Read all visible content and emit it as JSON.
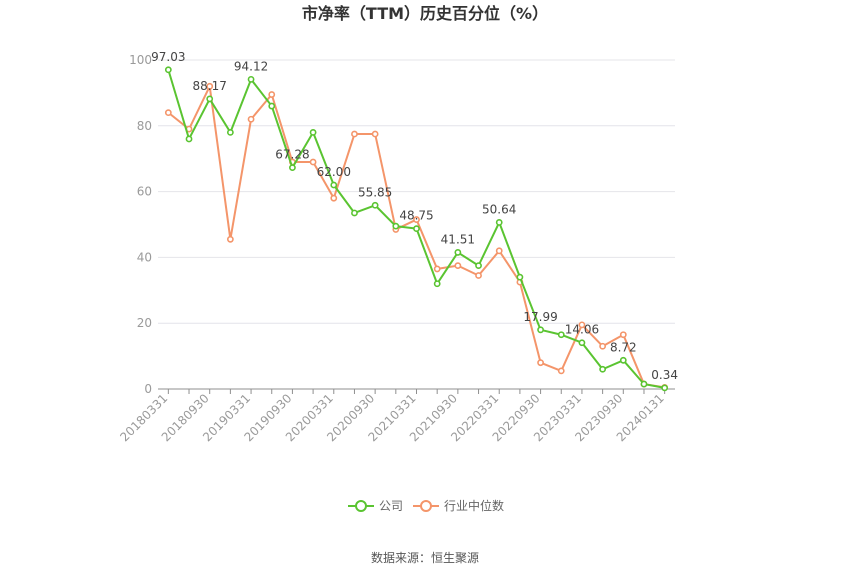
{
  "chart_data": {
    "type": "line",
    "title": "市净率（TTM）历史百分位（%）",
    "x": [
      "20180331",
      "20180630",
      "20180930",
      "20181231",
      "20190331",
      "20190630",
      "20190930",
      "20191231",
      "20200331",
      "20200630",
      "20200930",
      "20201231",
      "20210331",
      "20210630",
      "20210930",
      "20211231",
      "20220331",
      "20220630",
      "20220930",
      "20221231",
      "20230331",
      "20230630",
      "20230930",
      "20231231",
      "20240131"
    ],
    "x_tick_labels": [
      "20180331",
      "20180930",
      "20190331",
      "20190930",
      "20200331",
      "20200930",
      "20210331",
      "20210930",
      "20220331",
      "20220930",
      "20230331",
      "20230930",
      "20240131"
    ],
    "ylim": [
      0,
      100
    ],
    "y_ticks": [
      0,
      20,
      40,
      60,
      80,
      100
    ],
    "grid": true,
    "legend_position": "bottom",
    "series": [
      {
        "name": "公司",
        "color": "#5ac431",
        "values": [
          97.03,
          76.0,
          88.17,
          78.0,
          94.12,
          86.0,
          67.28,
          78.0,
          62.0,
          53.5,
          55.85,
          49.5,
          48.75,
          32.0,
          41.51,
          37.5,
          50.64,
          34.0,
          17.99,
          16.5,
          14.06,
          6.0,
          8.72,
          1.5,
          0.34
        ]
      },
      {
        "name": "行业中位数",
        "color": "#f4956a",
        "values": [
          84.0,
          79.0,
          92.0,
          45.5,
          82.0,
          89.5,
          69.0,
          69.0,
          58.0,
          77.5,
          77.5,
          48.5,
          51.5,
          36.5,
          37.5,
          34.5,
          42.0,
          32.5,
          8.0,
          5.5,
          19.5,
          13.0,
          16.5,
          1.5,
          0.5
        ]
      }
    ],
    "data_labels": [
      {
        "index": 0,
        "text": "97.03"
      },
      {
        "index": 2,
        "text": "88.17"
      },
      {
        "index": 4,
        "text": "94.12"
      },
      {
        "index": 6,
        "text": "67.28"
      },
      {
        "index": 8,
        "text": "62.00"
      },
      {
        "index": 10,
        "text": "55.85"
      },
      {
        "index": 12,
        "text": "48.75"
      },
      {
        "index": 14,
        "text": "41.51"
      },
      {
        "index": 16,
        "text": "50.64"
      },
      {
        "index": 18,
        "text": "17.99"
      },
      {
        "index": 20,
        "text": "14.06"
      },
      {
        "index": 22,
        "text": "8.72"
      },
      {
        "index": 24,
        "text": "0.34"
      }
    ]
  },
  "source": "数据来源：恒生聚源"
}
